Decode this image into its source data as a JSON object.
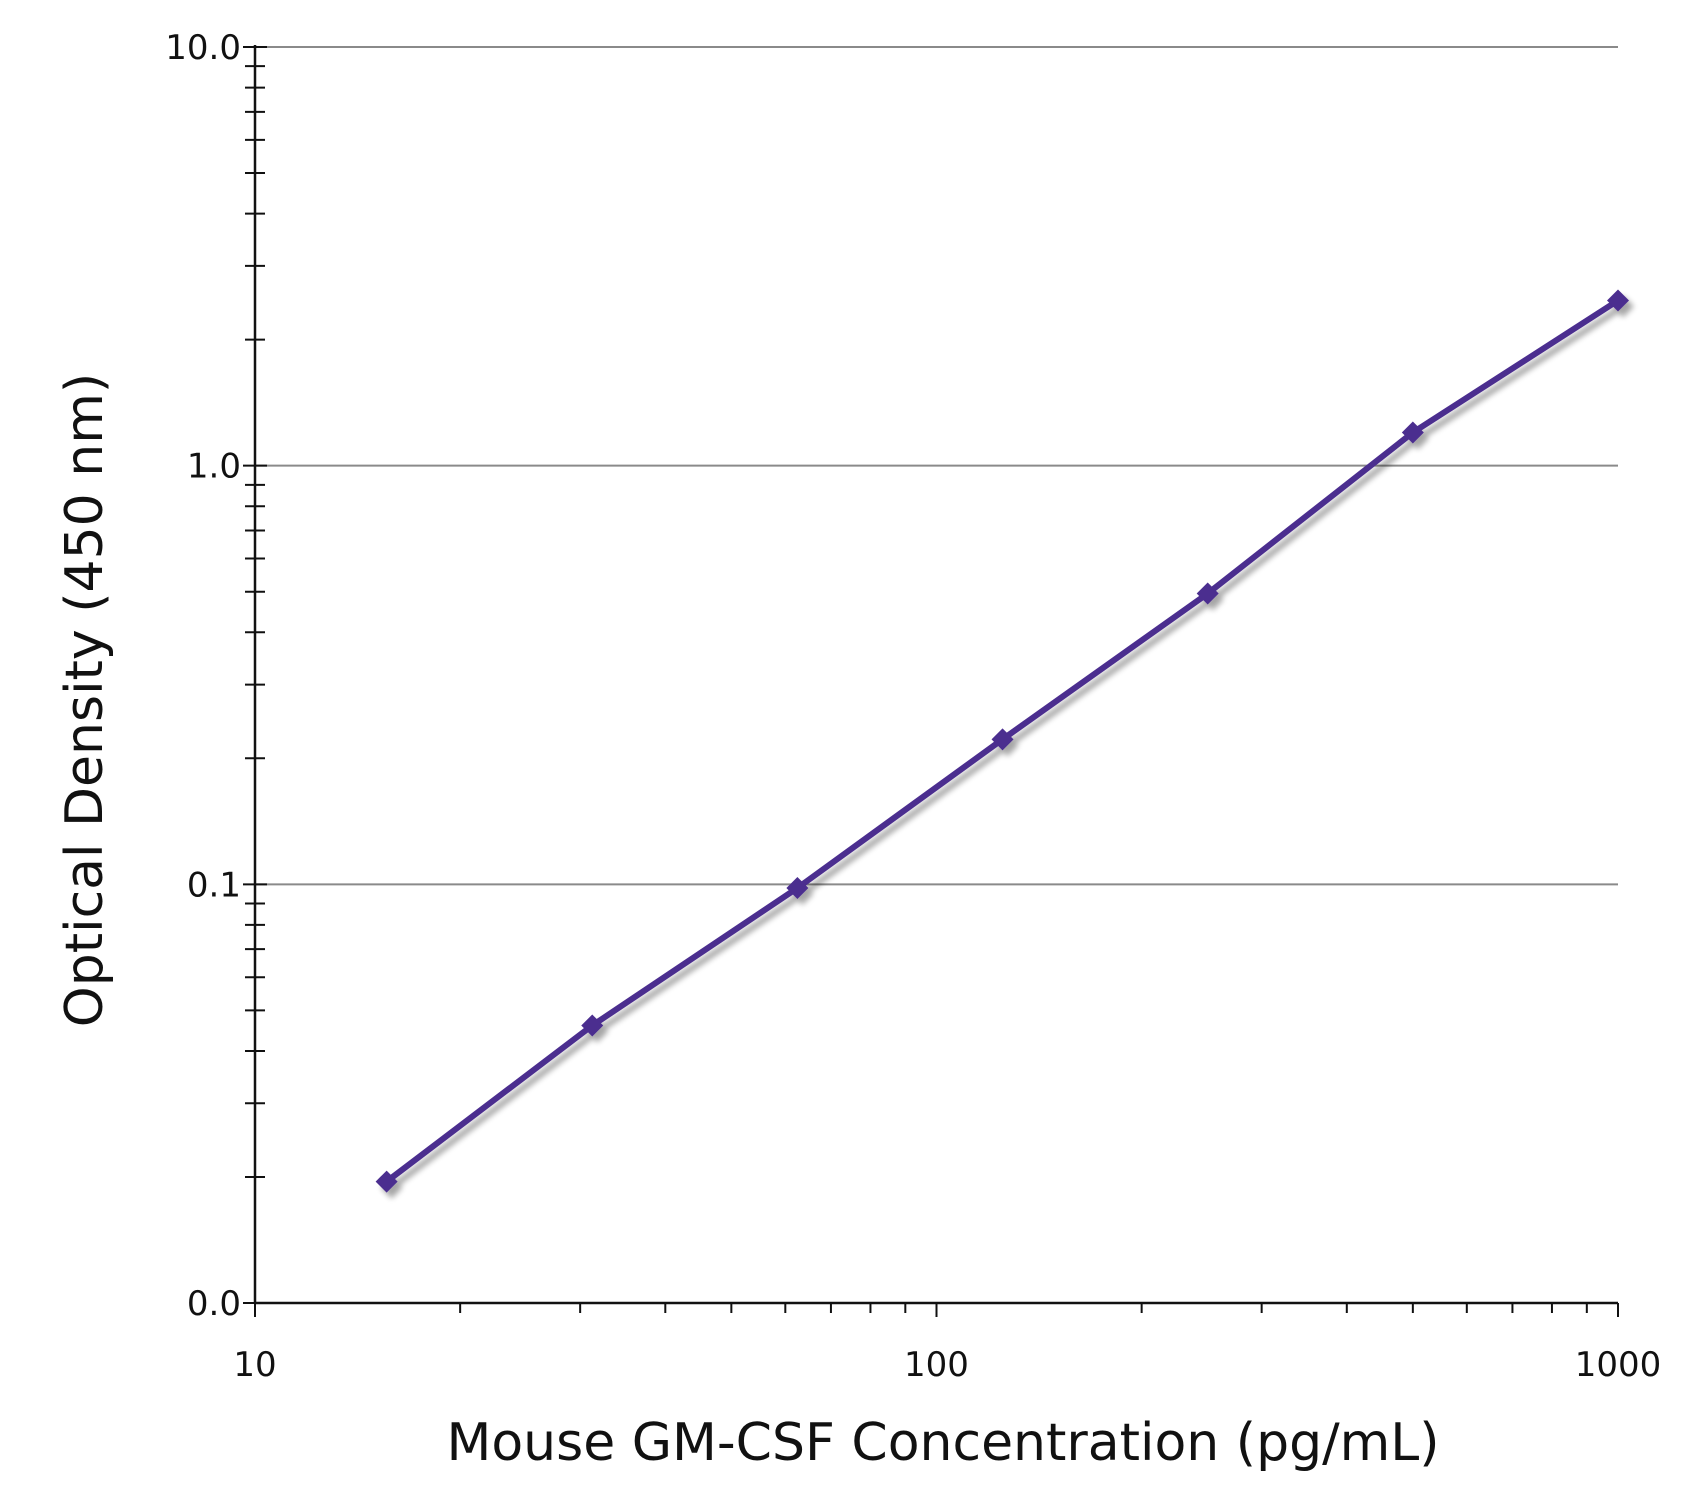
{
  "chart_data": {
    "type": "line",
    "title": "",
    "xlabel": "Mouse GM-CSF Concentration (pg/mL)",
    "ylabel": "Optical Density (450 nm)",
    "x_scale": "log",
    "y_scale": "log",
    "xlim": [
      10,
      1000
    ],
    "ylim": [
      0.01,
      10
    ],
    "x_ticks": [
      {
        "value": 10,
        "label": "10"
      },
      {
        "value": 100,
        "label": "100"
      },
      {
        "value": 1000,
        "label": "1000"
      }
    ],
    "y_ticks": [
      {
        "value": 0.01,
        "label": "0.0"
      },
      {
        "value": 0.1,
        "label": "0.1"
      },
      {
        "value": 1,
        "label": "1.0"
      },
      {
        "value": 10,
        "label": "10.0"
      }
    ],
    "grid": "horizontal major",
    "series": [
      {
        "color": "#4b2d8f",
        "marker": "diamond",
        "x": [
          15.6,
          31.25,
          62.5,
          125,
          250,
          500,
          1000
        ],
        "y": [
          0.0195,
          0.046,
          0.098,
          0.222,
          0.495,
          1.2,
          2.48
        ]
      }
    ]
  }
}
